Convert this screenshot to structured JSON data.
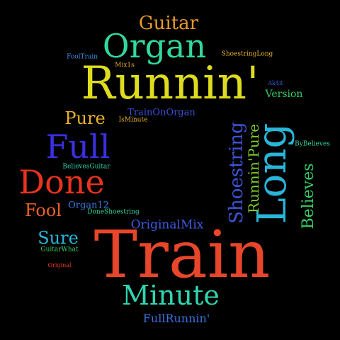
{
  "words": [
    {
      "text": "Train",
      "color": "#e8462a"
    },
    {
      "text": "Runnin'",
      "color": "#dedc1e"
    },
    {
      "text": "Long",
      "color": "#29b5d8"
    },
    {
      "text": "Organ",
      "color": "#31d8a0"
    },
    {
      "text": "Full",
      "color": "#3a2fe0"
    },
    {
      "text": "Done",
      "color": "#e8331f"
    },
    {
      "text": "Minute",
      "color": "#2fd6b0"
    },
    {
      "text": "Shoestring",
      "color": "#3d54d6"
    },
    {
      "text": "Guitar",
      "color": "#e89a2a"
    },
    {
      "text": "Runnin'Pure",
      "color": "#7fd02a"
    },
    {
      "text": "Believes",
      "color": "#36cf66"
    },
    {
      "text": "Pure",
      "color": "#e8b22a"
    },
    {
      "text": "Fool",
      "color": "#e8602a"
    },
    {
      "text": "Sure",
      "color": "#29b5d8"
    },
    {
      "text": "OriginalMix",
      "color": "#3d5ae0"
    },
    {
      "text": "FullRunnin'",
      "color": "#3d70e0"
    },
    {
      "text": "Version",
      "color": "#36cf66"
    },
    {
      "text": "TrainOnOrgan",
      "color": "#3a4fd6"
    },
    {
      "text": "Organ12",
      "color": "#3d7ae0"
    },
    {
      "text": "ShoestringLong",
      "color": "#e8b22a"
    },
    {
      "text": "FoolTrain",
      "color": "#3d8ae0"
    },
    {
      "text": "Mix1s",
      "color": "#e8b22a"
    },
    {
      "text": "Ak4it",
      "color": "#3d5ae0"
    },
    {
      "text": "IsMinute",
      "color": "#e8b22a"
    },
    {
      "text": "ByBelieves",
      "color": "#31d8a0"
    },
    {
      "text": "BelievesGuitar",
      "color": "#2fd6b0"
    },
    {
      "text": "DoneShoestring",
      "color": "#31d8a0"
    },
    {
      "text": "GuitarWhat",
      "color": "#36cf66"
    },
    {
      "text": "Original",
      "color": "#e8331f"
    }
  ]
}
